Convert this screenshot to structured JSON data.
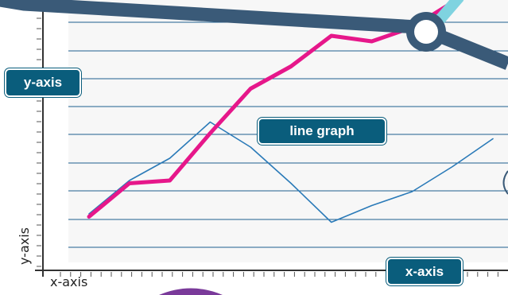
{
  "labels": {
    "y_axis_callout": "y-axis",
    "line_graph_callout": "line graph",
    "x_axis_callout": "x-axis",
    "y_axis_small": "y-axis",
    "x_axis_small": "x-axis"
  },
  "colors": {
    "callout_bg": "#0a5d7c",
    "magenta_line": "#e6178a",
    "blue_line": "#2a7ab8",
    "grid_line": "#1f5f8f",
    "banner": "#3a5a78",
    "cyan_accent": "#7fd3e0",
    "purple_accent": "#7a3a9a"
  },
  "chart_data": {
    "type": "line",
    "title": "",
    "xlabel": "x-axis",
    "ylabel": "y-axis",
    "grid": true,
    "series": [
      {
        "values": [
          0.1,
          1.3,
          1.4,
          3.1,
          4.7,
          5.5,
          6.6,
          6.4,
          6.9,
          7.8
        ]
      },
      {
        "values": [
          0.2,
          1.4,
          2.2,
          3.5,
          2.6,
          1.3,
          -0.1,
          0.5,
          1.0,
          1.9,
          2.9
        ]
      }
    ]
  }
}
